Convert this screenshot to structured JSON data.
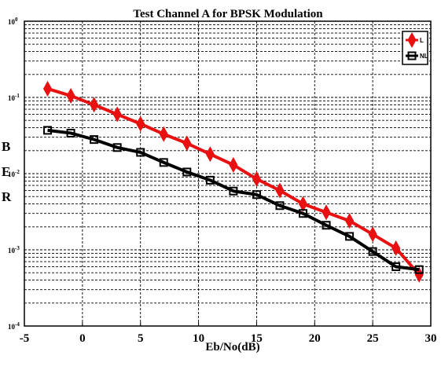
{
  "chart_data": {
    "type": "line",
    "title": "Test Channel A for BPSK Modulation",
    "xlabel": "Eb/No(dB)",
    "ylabel": [
      "B",
      "E",
      "R"
    ],
    "x_ticks": [
      "-5",
      "0",
      "5",
      "10",
      "15",
      "20",
      "25",
      "30"
    ],
    "xlim": [
      -5,
      30
    ],
    "y_scale": "log",
    "ylim": [
      0.0001,
      1
    ],
    "y_ticks": [
      {
        "base": "10",
        "exp": "0"
      },
      {
        "base": "10",
        "exp": "-1"
      },
      {
        "base": "10",
        "exp": "-2"
      },
      {
        "base": "10",
        "exp": "-3"
      },
      {
        "base": "10",
        "exp": "-4"
      }
    ],
    "grid": true,
    "legend_position": "top-right",
    "series": [
      {
        "name": "L",
        "color": "#e81010",
        "marker": "diamond",
        "x": [
          -3,
          -1,
          1,
          3,
          5,
          7,
          9,
          11,
          13,
          15,
          17,
          19,
          21,
          23,
          25,
          27,
          29
        ],
        "y": [
          0.13,
          0.105,
          0.08,
          0.06,
          0.045,
          0.033,
          0.025,
          0.018,
          0.013,
          0.0085,
          0.006,
          0.004,
          0.0031,
          0.0024,
          0.0016,
          0.00105,
          0.00047
        ]
      },
      {
        "name": "NL",
        "color": "#000000",
        "marker": "square",
        "x": [
          -3,
          -1,
          1,
          3,
          5,
          7,
          9,
          11,
          13,
          15,
          17,
          19,
          21,
          23,
          25,
          27,
          29
        ],
        "y": [
          0.037,
          0.034,
          0.028,
          0.022,
          0.019,
          0.014,
          0.0105,
          0.0082,
          0.0059,
          0.0053,
          0.0038,
          0.003,
          0.0021,
          0.0015,
          0.00095,
          0.0006,
          0.00055
        ]
      }
    ]
  }
}
